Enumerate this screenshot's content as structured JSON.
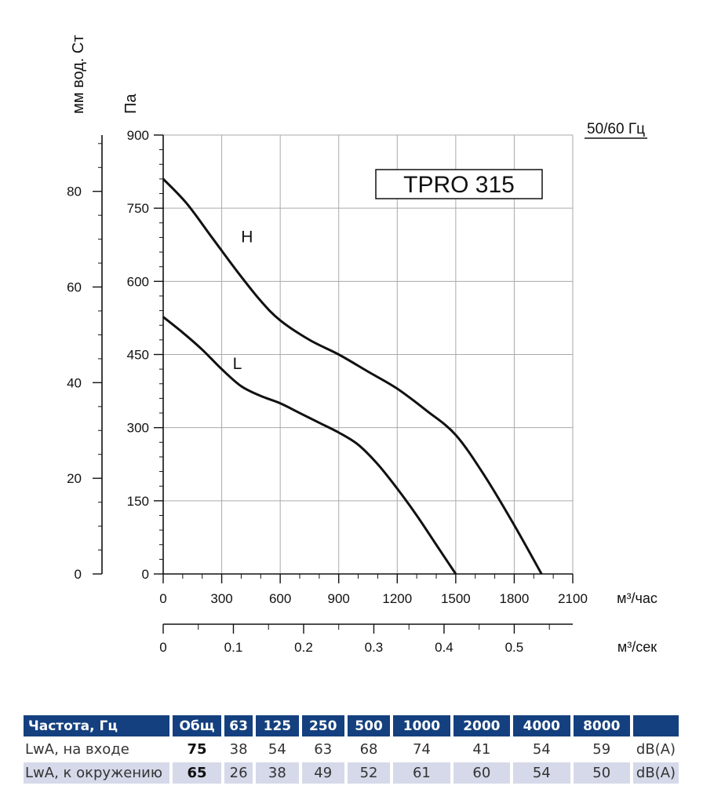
{
  "chart_data": {
    "type": "line",
    "title": "TPRO 315",
    "frequency_label": "50/60 Гц",
    "ylabel_left": "мм вод. Ст",
    "ylabel_pa": "Па",
    "xlabel_hour": "м³/час",
    "xlabel_sec": "м³/сек",
    "xlim": [
      0,
      2100
    ],
    "ylim": [
      0,
      900
    ],
    "x_ticks": [
      0,
      300,
      600,
      900,
      1200,
      1500,
      1800,
      2100
    ],
    "y_ticks": [
      0,
      150,
      300,
      450,
      600,
      750,
      900
    ],
    "mm_ticks": [
      0,
      20,
      40,
      60,
      80
    ],
    "sec_ticks": [
      "0",
      "0.1",
      "0.2",
      "0.3",
      "0.4",
      "0.5"
    ],
    "series": [
      {
        "name": "H",
        "points": [
          [
            0,
            810
          ],
          [
            120,
            760
          ],
          [
            250,
            690
          ],
          [
            380,
            620
          ],
          [
            500,
            560
          ],
          [
            600,
            520
          ],
          [
            750,
            480
          ],
          [
            900,
            450
          ],
          [
            1050,
            415
          ],
          [
            1200,
            380
          ],
          [
            1350,
            335
          ],
          [
            1500,
            285
          ],
          [
            1650,
            200
          ],
          [
            1800,
            100
          ],
          [
            1940,
            0
          ]
        ]
      },
      {
        "name": "L",
        "points": [
          [
            0,
            527
          ],
          [
            100,
            495
          ],
          [
            200,
            460
          ],
          [
            300,
            420
          ],
          [
            400,
            385
          ],
          [
            500,
            365
          ],
          [
            600,
            350
          ],
          [
            700,
            330
          ],
          [
            800,
            310
          ],
          [
            900,
            290
          ],
          [
            1000,
            265
          ],
          [
            1100,
            225
          ],
          [
            1200,
            175
          ],
          [
            1300,
            120
          ],
          [
            1400,
            60
          ],
          [
            1500,
            0
          ]
        ]
      }
    ],
    "grid": true,
    "noise_table": {
      "headers": [
        "Частота, Гц",
        "Общ",
        "63",
        "125",
        "250",
        "500",
        "1000",
        "2000",
        "4000",
        "8000",
        ""
      ],
      "rows": [
        {
          "label": "LwA, на входе",
          "total": "75",
          "values": [
            "38",
            "54",
            "63",
            "68",
            "74",
            "41",
            "54",
            "59"
          ],
          "unit": "dB(A)"
        },
        {
          "label": "LwA, к окружению",
          "total": "65",
          "values": [
            "26",
            "38",
            "49",
            "52",
            "61",
            "60",
            "54",
            "50"
          ],
          "unit": "dB(A)"
        }
      ]
    }
  }
}
